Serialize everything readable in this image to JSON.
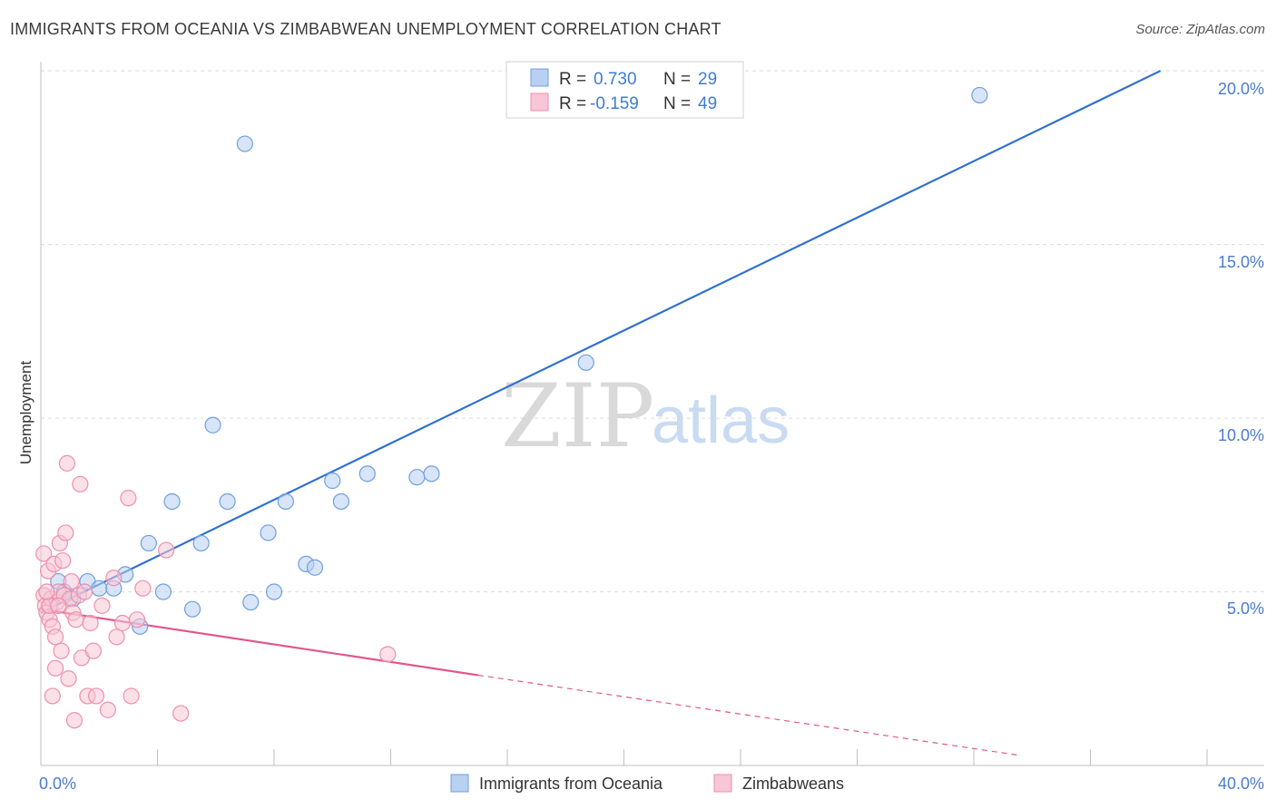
{
  "title": "IMMIGRANTS FROM OCEANIA VS ZIMBABWEAN UNEMPLOYMENT CORRELATION CHART",
  "source": "Source: ZipAtlas.com",
  "watermark": {
    "zip": "ZIP",
    "atlas": "atlas"
  },
  "legend_stats": {
    "r_label": "R =",
    "n_label": "N =",
    "series1": {
      "r": "0.730",
      "n": "29"
    },
    "series2": {
      "r": "-0.159",
      "n": "49"
    }
  },
  "chart_data": {
    "type": "scatter",
    "title": "IMMIGRANTS FROM OCEANIA VS ZIMBABWEAN UNEMPLOYMENT CORRELATION CHART",
    "xlabel": "",
    "ylabel": "Unemployment",
    "xlim": [
      0,
      40
    ],
    "ylim": [
      0,
      20.5
    ],
    "x_tick_labels": [
      "0.0%",
      "40.0%"
    ],
    "y_ticks": [
      5,
      10,
      15,
      20
    ],
    "y_tick_labels": [
      "5.0%",
      "10.0%",
      "15.0%",
      "20.0%"
    ],
    "grid": true,
    "legend_position": "bottom",
    "series": [
      {
        "name": "Immigrants from Oceania",
        "color": "#6f9fe0",
        "fill": "#b8d0f2",
        "line_color": "#2e6fd0",
        "trend": {
          "x0": 0,
          "y0": 4.4,
          "x1": 38.4,
          "y1": 20.0
        },
        "points": [
          [
            0.6,
            5.3
          ],
          [
            0.8,
            5.0
          ],
          [
            1.1,
            4.8
          ],
          [
            1.6,
            5.3
          ],
          [
            2.0,
            5.1
          ],
          [
            2.5,
            5.1
          ],
          [
            2.9,
            5.5
          ],
          [
            3.4,
            4.0
          ],
          [
            3.7,
            6.4
          ],
          [
            4.2,
            5.0
          ],
          [
            4.5,
            7.6
          ],
          [
            5.2,
            4.5
          ],
          [
            5.5,
            6.4
          ],
          [
            5.9,
            9.8
          ],
          [
            6.4,
            7.6
          ],
          [
            7.0,
            17.9
          ],
          [
            7.2,
            4.7
          ],
          [
            7.8,
            6.7
          ],
          [
            8.0,
            5.0
          ],
          [
            8.4,
            7.6
          ],
          [
            9.1,
            5.8
          ],
          [
            9.4,
            5.7
          ],
          [
            10.0,
            8.2
          ],
          [
            10.3,
            7.6
          ],
          [
            11.2,
            8.4
          ],
          [
            12.9,
            8.3
          ],
          [
            13.4,
            8.4
          ],
          [
            18.7,
            11.6
          ],
          [
            32.2,
            19.3
          ]
        ]
      },
      {
        "name": "Zimbabweans",
        "color": "#ee8fae",
        "fill": "#f8c6d6",
        "line_color": "#e0578c",
        "trend": {
          "x0": 0,
          "y0": 4.5,
          "x1": 15.0,
          "y1": 2.6
        },
        "trend_dashed": {
          "x0": 15.0,
          "y0": 2.6,
          "x1": 33.5,
          "y1": 0.3
        },
        "points": [
          [
            0.1,
            6.1
          ],
          [
            0.1,
            4.9
          ],
          [
            0.15,
            4.6
          ],
          [
            0.2,
            4.4
          ],
          [
            0.25,
            5.6
          ],
          [
            0.3,
            4.2
          ],
          [
            0.35,
            4.8
          ],
          [
            0.4,
            4.0
          ],
          [
            0.45,
            5.8
          ],
          [
            0.5,
            3.7
          ],
          [
            0.5,
            2.8
          ],
          [
            0.55,
            4.7
          ],
          [
            0.6,
            5.0
          ],
          [
            0.65,
            6.4
          ],
          [
            0.7,
            3.3
          ],
          [
            0.75,
            5.9
          ],
          [
            0.8,
            4.9
          ],
          [
            0.85,
            6.7
          ],
          [
            0.9,
            8.7
          ],
          [
            0.95,
            2.5
          ],
          [
            1.0,
            4.8
          ],
          [
            1.05,
            5.3
          ],
          [
            1.1,
            4.4
          ],
          [
            1.15,
            1.3
          ],
          [
            1.2,
            4.2
          ],
          [
            1.3,
            4.9
          ],
          [
            1.35,
            8.1
          ],
          [
            1.4,
            3.1
          ],
          [
            1.5,
            5.0
          ],
          [
            1.6,
            2.0
          ],
          [
            1.7,
            4.1
          ],
          [
            1.8,
            3.3
          ],
          [
            1.9,
            2.0
          ],
          [
            2.1,
            4.6
          ],
          [
            2.3,
            1.6
          ],
          [
            2.5,
            5.4
          ],
          [
            2.6,
            3.7
          ],
          [
            2.8,
            4.1
          ],
          [
            3.0,
            7.7
          ],
          [
            3.1,
            2.0
          ],
          [
            3.3,
            4.2
          ],
          [
            3.5,
            5.1
          ],
          [
            4.3,
            6.2
          ],
          [
            4.8,
            1.5
          ],
          [
            11.9,
            3.2
          ],
          [
            0.3,
            4.6
          ],
          [
            0.4,
            2.0
          ],
          [
            0.6,
            4.6
          ],
          [
            0.2,
            5.0
          ]
        ]
      }
    ]
  }
}
